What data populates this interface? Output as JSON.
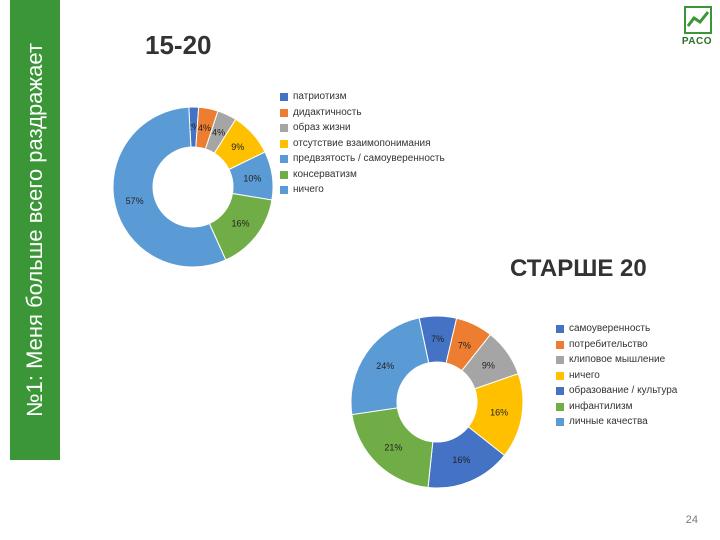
{
  "sidebar_text": "№1: Меня больше всего раздражает",
  "logo_label": "PACO",
  "page_number": "24",
  "chart1": {
    "title": "15-20",
    "type": "donut",
    "outer_r": 80,
    "inner_r": 40,
    "label_fontsize": 9,
    "label_color": "#222222",
    "slices": [
      {
        "label": "патриотизм",
        "value": 2,
        "color": "#4472c4"
      },
      {
        "label": "дидактичность",
        "value": 4,
        "color": "#ed7d31"
      },
      {
        "label": "образ жизни",
        "value": 4,
        "color": "#a5a5a5"
      },
      {
        "label": "отсутствие взаимопонимания",
        "value": 9,
        "color": "#ffc000"
      },
      {
        "label": "предвзятость / самоуверенность",
        "value": 10,
        "color": "#5b9bd5"
      },
      {
        "label": "консерватизм",
        "value": 16,
        "color": "#70ad47"
      },
      {
        "label": "ничего",
        "value": 57,
        "color": "#5b9bd5"
      }
    ]
  },
  "chart2": {
    "title": "СТАРШЕ 20",
    "type": "donut",
    "outer_r": 86,
    "inner_r": 40,
    "label_fontsize": 9,
    "label_color": "#222222",
    "slices": [
      {
        "label": "самоуверенность",
        "value": 7,
        "color": "#4472c4"
      },
      {
        "label": "потребительство",
        "value": 7,
        "color": "#ed7d31"
      },
      {
        "label": "клиповое мышление",
        "value": 9,
        "color": "#a5a5a5"
      },
      {
        "label": "ничего",
        "value": 16,
        "color": "#ffc000"
      },
      {
        "label": "образование / культура",
        "value": 16,
        "color": "#4472c4"
      },
      {
        "label": "инфантилизм",
        "value": 21,
        "color": "#70ad47"
      },
      {
        "label": "личные качества",
        "value": 24,
        "color": "#5b9bd5"
      }
    ]
  }
}
